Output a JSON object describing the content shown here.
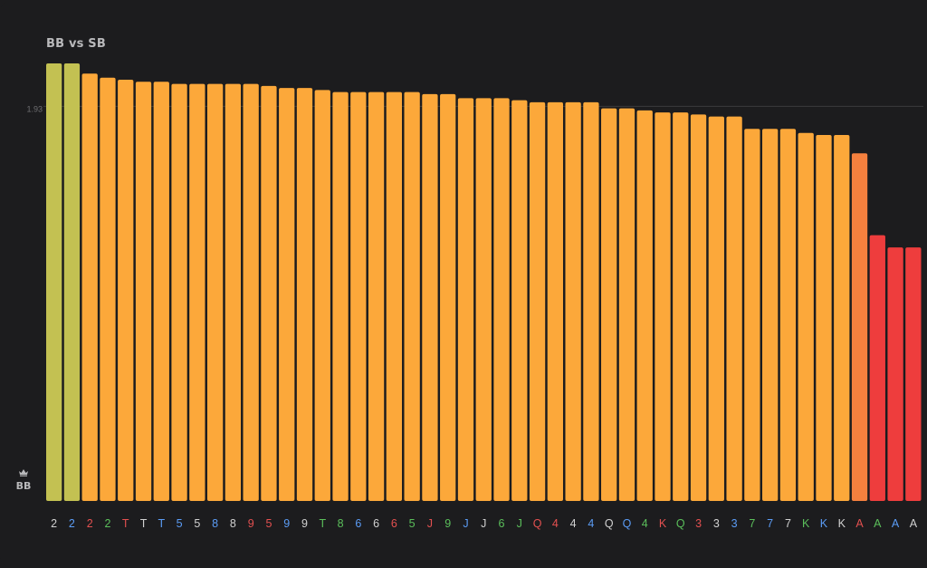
{
  "title": "BB vs SB",
  "marker": {
    "icon": "crown-icon",
    "label": "BB"
  },
  "chart_data": {
    "type": "bar",
    "title": "BB vs SB",
    "xlabel": "",
    "ylabel": "",
    "reference_line": {
      "value": 1.93,
      "label": "1.93"
    },
    "ylim": [
      0,
      2.14
    ],
    "grid": false,
    "legend": "none",
    "categories": [
      "2",
      "2",
      "2",
      "2",
      "T",
      "T",
      "T",
      "5",
      "5",
      "8",
      "8",
      "9",
      "5",
      "9",
      "9",
      "T",
      "8",
      "6",
      "6",
      "6",
      "5",
      "J",
      "9",
      "J",
      "J",
      "6",
      "J",
      "Q",
      "4",
      "4",
      "4",
      "Q",
      "Q",
      "4",
      "K",
      "Q",
      "3",
      "3",
      "3",
      "7",
      "7",
      "7",
      "K",
      "K",
      "K",
      "A",
      "A",
      "A",
      "A"
    ],
    "label_colors": [
      "#d1d1d1",
      "#5b9cf5",
      "#e35050",
      "#5bbf5b",
      "#e35050",
      "#d1d1d1",
      "#5b9cf5",
      "#5b9cf5",
      "#d1d1d1",
      "#5b9cf5",
      "#d1d1d1",
      "#e35050",
      "#e35050",
      "#5b9cf5",
      "#d1d1d1",
      "#5bbf5b",
      "#5bbf5b",
      "#5b9cf5",
      "#d1d1d1",
      "#e35050",
      "#5bbf5b",
      "#e35050",
      "#5bbf5b",
      "#5b9cf5",
      "#d1d1d1",
      "#5bbf5b",
      "#5bbf5b",
      "#e35050",
      "#e35050",
      "#d1d1d1",
      "#5b9cf5",
      "#d1d1d1",
      "#5b9cf5",
      "#5bbf5b",
      "#e35050",
      "#5bbf5b",
      "#e35050",
      "#d1d1d1",
      "#5b9cf5",
      "#5bbf5b",
      "#5b9cf5",
      "#d1d1d1",
      "#5bbf5b",
      "#5b9cf5",
      "#d1d1d1",
      "#e35050",
      "#5bbf5b",
      "#5b9cf5",
      "#d1d1d1"
    ],
    "values": [
      2.14,
      2.14,
      2.09,
      2.07,
      2.06,
      2.05,
      2.05,
      2.04,
      2.04,
      2.04,
      2.04,
      2.04,
      2.03,
      2.02,
      2.02,
      2.01,
      2.0,
      2.0,
      2.0,
      2.0,
      2.0,
      1.99,
      1.99,
      1.97,
      1.97,
      1.97,
      1.96,
      1.95,
      1.95,
      1.95,
      1.95,
      1.92,
      1.92,
      1.91,
      1.9,
      1.9,
      1.89,
      1.88,
      1.88,
      1.82,
      1.82,
      1.82,
      1.8,
      1.79,
      1.79,
      1.7,
      1.3,
      1.24,
      1.24
    ],
    "bar_colors": [
      "#c3c152",
      "#c3c152",
      "#fca83a",
      "#fca83a",
      "#fca83a",
      "#fca83a",
      "#fca83a",
      "#fca83a",
      "#fca83a",
      "#fca83a",
      "#fca83a",
      "#fca83a",
      "#fca83a",
      "#fca83a",
      "#fca83a",
      "#fca83a",
      "#fca83a",
      "#fca83a",
      "#fca83a",
      "#fca83a",
      "#fca83a",
      "#fca83a",
      "#fca83a",
      "#fca83a",
      "#fca83a",
      "#fca83a",
      "#fca83a",
      "#fca83a",
      "#fca83a",
      "#fca83a",
      "#fca83a",
      "#fca83a",
      "#fca83a",
      "#fca83a",
      "#fca83a",
      "#fca83a",
      "#fca83a",
      "#fca83a",
      "#fca83a",
      "#fca83a",
      "#fca83a",
      "#fca83a",
      "#fca83a",
      "#fca83a",
      "#fca83a",
      "#f5803e",
      "#ee3d3d",
      "#ee3d3d",
      "#ee3d3d"
    ]
  }
}
